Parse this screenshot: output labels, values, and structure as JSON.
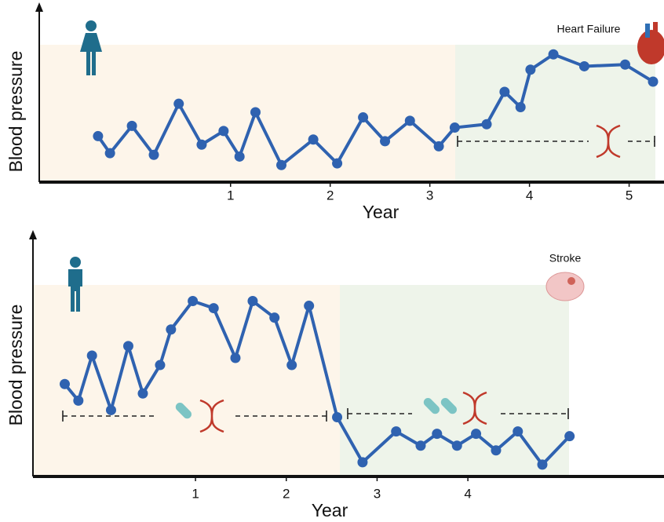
{
  "chart_data": [
    {
      "type": "line",
      "annotation": "Heart Failure",
      "x_label": "Year",
      "y_label": "Blood pressure",
      "xlim": [
        -0.92,
        5.35
      ],
      "ylim": [
        0,
        100
      ],
      "xticks": [
        1,
        2,
        3,
        4,
        5
      ],
      "series": [
        {
          "color": "#2f62b0",
          "x": [
            -0.33,
            -0.21,
            0.01,
            0.23,
            0.48,
            0.71,
            0.93,
            1.09,
            1.25,
            1.51,
            1.83,
            2.07,
            2.33,
            2.55,
            2.8,
            3.09,
            3.25,
            3.57,
            3.75,
            3.91,
            4.01,
            4.24,
            4.55,
            4.96,
            5.24
          ],
          "values": [
            27,
            17,
            33,
            16,
            46,
            22,
            30,
            15,
            41,
            10,
            25,
            11,
            38,
            24,
            36,
            21,
            32,
            34,
            53,
            44,
            66,
            75,
            68,
            69,
            59
          ]
        }
      ]
    },
    {
      "type": "line",
      "annotation": "Stroke",
      "x_label": "Year",
      "y_label": "Blood pressure",
      "xlim": [
        -0.79,
        6.16
      ],
      "ylim": [
        0,
        100
      ],
      "xticks": [
        1,
        2,
        3,
        4
      ],
      "series": [
        {
          "color": "#2f62b0",
          "x": [
            -0.44,
            -0.29,
            -0.14,
            0.07,
            0.26,
            0.42,
            0.61,
            0.73,
            0.97,
            1.2,
            1.44,
            1.63,
            1.87,
            2.06,
            2.25,
            2.56,
            2.84,
            3.21,
            3.48,
            3.66,
            3.88,
            4.09,
            4.31,
            4.55,
            4.82,
            5.12
          ],
          "values": [
            39,
            32,
            51,
            28,
            55,
            35,
            47,
            62,
            74,
            71,
            50,
            74,
            67,
            47,
            72,
            25,
            6,
            19,
            13,
            18,
            13,
            18,
            11,
            19,
            5,
            17
          ]
        }
      ]
    }
  ]
}
